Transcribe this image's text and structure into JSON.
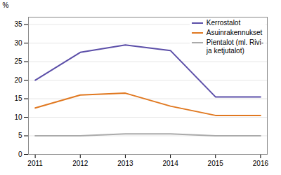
{
  "chart_data": {
    "type": "line",
    "x": [
      2011,
      2012,
      2013,
      2014,
      2015,
      2016
    ],
    "series": [
      {
        "name": "Kerrostalot",
        "color": "#5b4ea8",
        "values": [
          20.0,
          27.5,
          29.5,
          28.0,
          15.5,
          15.5
        ]
      },
      {
        "name": "Asuinrakennukset",
        "color": "#e07820",
        "values": [
          12.5,
          16.0,
          16.5,
          13.0,
          10.5,
          10.5
        ]
      },
      {
        "name": "Pientalot (ml. Rivi-\nja ketjutalot)",
        "color": "#aaaaaa",
        "values": [
          5.0,
          5.0,
          5.5,
          5.5,
          5.0,
          5.0
        ]
      }
    ],
    "ylabel": "%",
    "xlim": [
      2010.85,
      2016.15
    ],
    "xticks": [
      2011,
      2012,
      2013,
      2014,
      2015,
      2016
    ],
    "ylim": [
      0,
      37
    ],
    "yticks": [
      0,
      5,
      10,
      15,
      20,
      25,
      30,
      35
    ],
    "grid": true,
    "legend": "upper right"
  }
}
